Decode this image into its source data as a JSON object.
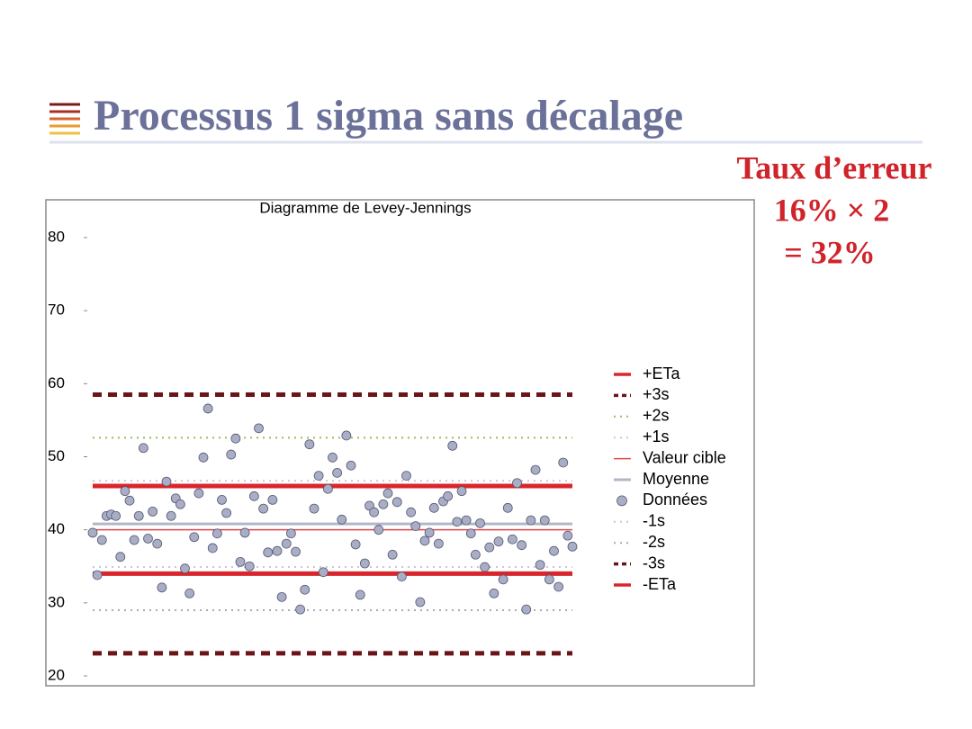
{
  "slide": {
    "title": "Processus 1 sigma sans décalage",
    "note": [
      "Taux d’erreur",
      "16% × 2",
      "= 32%"
    ]
  },
  "chart_data": {
    "type": "scatter",
    "title": "Diagramme de Levey-Jennings",
    "ylim": [
      20,
      80
    ],
    "yticks": [
      20,
      30,
      40,
      50,
      60,
      70,
      80
    ],
    "legend": "right",
    "series": [
      {
        "name": "+ETa",
        "color": "#d9262c",
        "style": "thick-solid",
        "value": 46
      },
      {
        "name": "+3s",
        "color": "#6b1518",
        "style": "thick-dashed",
        "value": 58.5
      },
      {
        "name": "+2s",
        "color": "#9bbb59",
        "style": "dotted",
        "value": 52.6
      },
      {
        "name": "+1s",
        "color": "#c6c8d4",
        "style": "dotted",
        "value": 46.7
      },
      {
        "name": "Valeur cible",
        "color": "#e0474c",
        "style": "thin-solid",
        "value": 40
      },
      {
        "name": "Moyenne",
        "color": "#b3b6c9",
        "style": "medium-solid",
        "value": 40.8
      },
      {
        "name": "Données",
        "color": "#a9adc6",
        "style": "marker",
        "values": [
          39.6,
          33.8,
          38.6,
          41.9,
          42.1,
          41.9,
          36.3,
          45.3,
          44.0,
          38.6,
          41.9,
          51.2,
          38.8,
          42.5,
          38.1,
          32.1,
          46.6,
          41.9,
          44.3,
          43.5,
          34.7,
          31.3,
          39.0,
          45.0,
          49.9,
          56.6,
          37.5,
          39.5,
          44.1,
          42.3,
          50.3,
          52.5,
          35.6,
          39.6,
          35.0,
          44.6,
          53.9,
          42.9,
          36.9,
          44.1,
          37.1,
          30.8,
          38.1,
          39.5,
          37.0,
          29.1,
          31.8,
          51.7,
          42.9,
          47.4,
          34.2,
          45.6,
          49.9,
          47.8,
          41.4,
          52.9,
          48.8,
          38.0,
          31.1,
          35.4,
          43.3,
          42.4,
          40.0,
          43.5,
          45.0,
          36.6,
          43.8,
          33.6,
          47.4,
          42.4,
          40.5,
          30.1,
          38.5,
          39.6,
          43.0,
          38.1,
          43.9,
          44.6,
          51.5,
          41.1,
          45.3,
          41.3,
          39.5,
          36.6,
          40.9,
          34.9,
          37.6,
          31.3,
          38.4,
          33.2,
          43.0,
          38.7,
          46.4,
          37.9,
          29.1,
          41.3,
          48.2,
          35.2,
          41.3,
          33.2,
          37.1,
          32.2,
          49.2,
          39.2,
          37.7
        ]
      },
      {
        "name": "-1s",
        "color": "#c6c8d4",
        "style": "dotted",
        "value": 34.9
      },
      {
        "name": "-2s",
        "color": "#a4aab8",
        "style": "dotted",
        "value": 29.0
      },
      {
        "name": "-3s",
        "color": "#6b1518",
        "style": "thick-dashed",
        "value": 23.1
      },
      {
        "name": "-ETa",
        "color": "#d9262c",
        "style": "thick-solid",
        "value": 34
      }
    ]
  }
}
